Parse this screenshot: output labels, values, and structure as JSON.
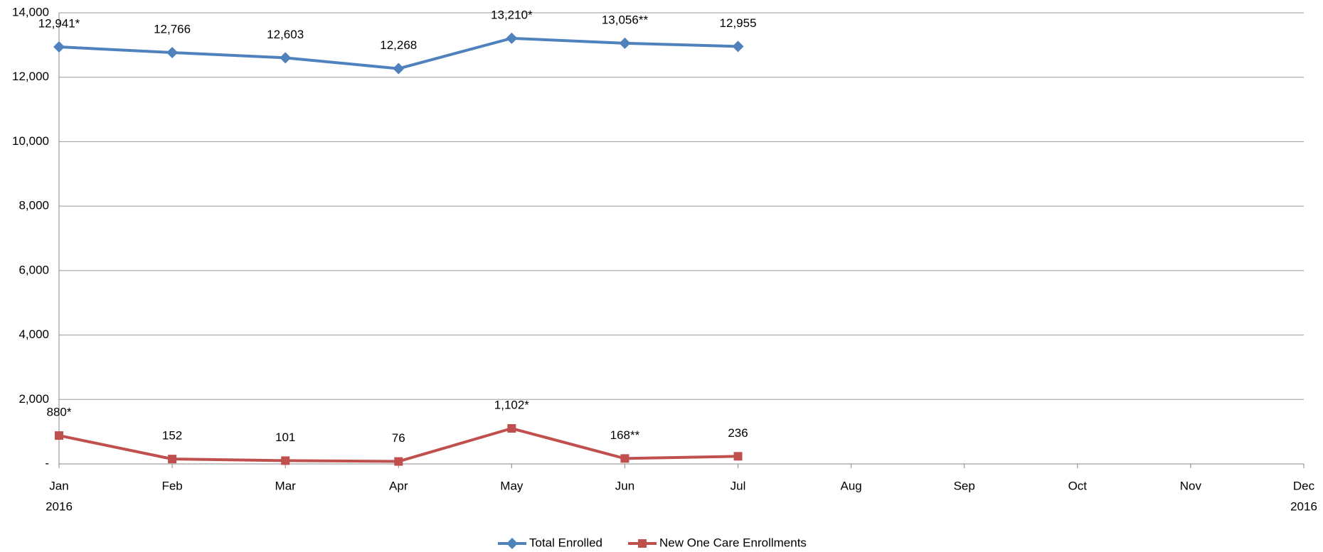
{
  "chart_data": {
    "type": "line",
    "categories": [
      "Jan",
      "Feb",
      "Mar",
      "Apr",
      "May",
      "Jun",
      "Jul",
      "Aug",
      "Sep",
      "Oct",
      "Nov",
      "Dec"
    ],
    "category_sublabels": [
      "2016",
      null,
      null,
      null,
      null,
      null,
      null,
      null,
      null,
      null,
      null,
      "2016"
    ],
    "series": [
      {
        "name": "Total Enrolled",
        "color": "#4f81bd",
        "marker": "diamond",
        "values": [
          12941,
          12766,
          12603,
          12268,
          13210,
          13056,
          12955,
          null,
          null,
          null,
          null,
          null
        ],
        "value_labels": [
          "12,941*",
          "12,766",
          "12,603",
          "12,268",
          "13,210*",
          "13,056**",
          "12,955",
          null,
          null,
          null,
          null,
          null
        ]
      },
      {
        "name": "New One Care Enrollments",
        "color": "#c0504d",
        "marker": "square",
        "values": [
          880,
          152,
          101,
          76,
          1102,
          168,
          236,
          null,
          null,
          null,
          null,
          null
        ],
        "value_labels": [
          "880*",
          "152",
          "101",
          "76",
          "1,102*",
          "168**",
          "236",
          null,
          null,
          null,
          null,
          null
        ]
      }
    ],
    "ylim": [
      0,
      14000
    ],
    "yticks": [
      {
        "value": 0,
        "label": "-"
      },
      {
        "value": 2000,
        "label": "2,000"
      },
      {
        "value": 4000,
        "label": "4,000"
      },
      {
        "value": 6000,
        "label": "6,000"
      },
      {
        "value": 8000,
        "label": "8,000"
      },
      {
        "value": 10000,
        "label": "10,000"
      },
      {
        "value": 12000,
        "label": "12,000"
      },
      {
        "value": 14000,
        "label": "14,000"
      }
    ],
    "grid": true,
    "legend": "bottom"
  }
}
